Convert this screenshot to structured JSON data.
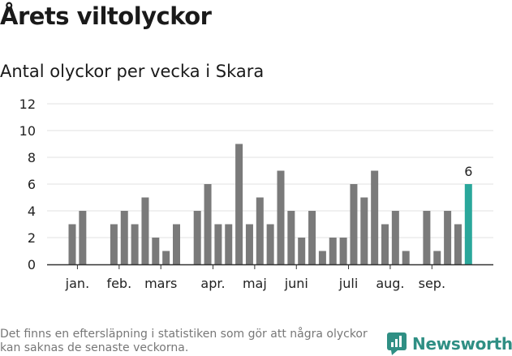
{
  "title": "Årets viltolyckor",
  "subtitle": "Antal olyckor per vecka i Skara",
  "footnote": "Det finns en eftersläpning i statistiken som gör att några olyckor kan saknas de senaste veckorna.",
  "brand": {
    "name": "Newsworthy"
  },
  "colors": {
    "bar": "#7a7a7a",
    "highlight": "#2aa79b",
    "grid": "#e2e2e2",
    "axis": "#333333",
    "brand": "#2f8f84"
  },
  "chart_data": {
    "type": "bar",
    "title": "Antal olyckor per vecka i Skara",
    "xlabel": "",
    "ylabel": "",
    "ylim": [
      0,
      12
    ],
    "yticks": [
      "0",
      "2",
      "4",
      "6",
      "8",
      "10",
      "12"
    ],
    "weeks": [
      1,
      2,
      3,
      4,
      5,
      6,
      7,
      8,
      9,
      10,
      11,
      12,
      13,
      14,
      15,
      16,
      17,
      18,
      19,
      20,
      21,
      22,
      23,
      24,
      25,
      26,
      27,
      28,
      29,
      30,
      31,
      32,
      33,
      34,
      35,
      36,
      37,
      38,
      39,
      40
    ],
    "values": [
      3,
      4,
      0,
      0,
      3,
      4,
      3,
      5,
      2,
      1,
      3,
      0,
      4,
      6,
      3,
      3,
      9,
      3,
      5,
      3,
      7,
      4,
      2,
      4,
      1,
      2,
      2,
      6,
      5,
      7,
      3,
      4,
      1,
      0,
      4,
      1,
      4,
      3,
      6,
      null
    ],
    "highlight_index": 38,
    "highlight_label": "6",
    "month_ticks": [
      {
        "label": "jan.",
        "week": 1.5
      },
      {
        "label": "feb.",
        "week": 5.5
      },
      {
        "label": "mars",
        "week": 9.5
      },
      {
        "label": "apr.",
        "week": 14.5
      },
      {
        "label": "maj",
        "week": 18.5
      },
      {
        "label": "juni",
        "week": 22.5
      },
      {
        "label": "juli",
        "week": 27.5
      },
      {
        "label": "aug.",
        "week": 31.5
      },
      {
        "label": "sep.",
        "week": 35.5
      }
    ]
  }
}
